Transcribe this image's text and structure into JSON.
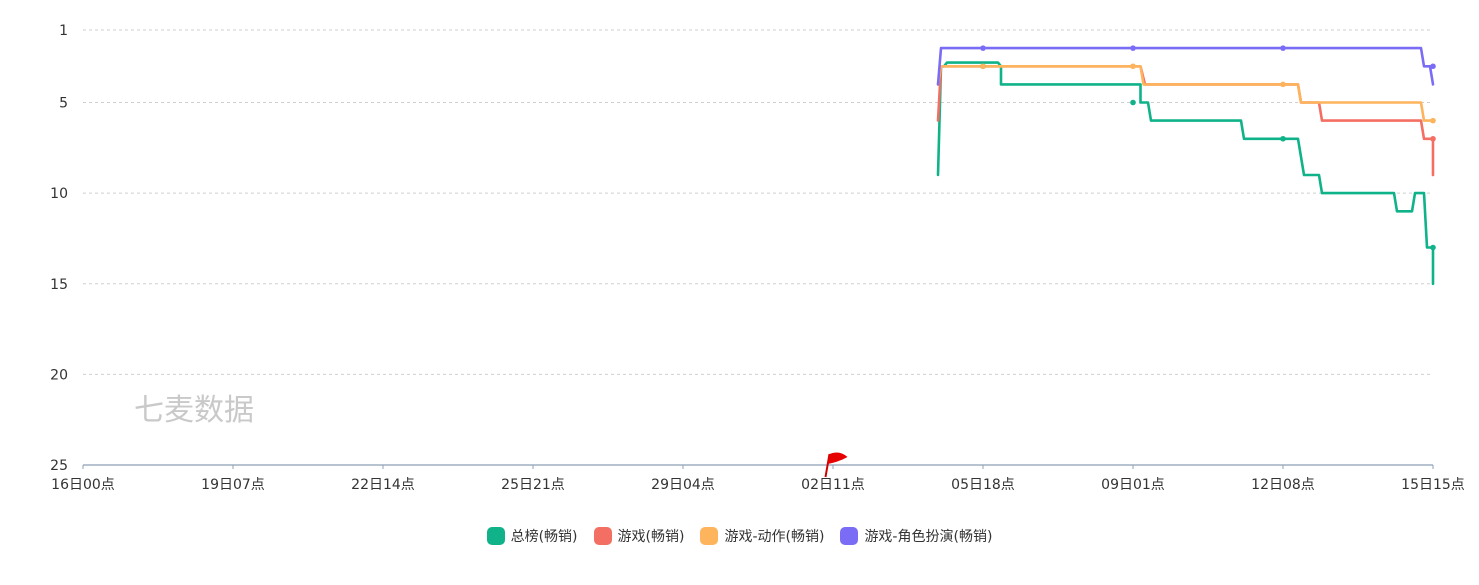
{
  "chart_data": {
    "type": "line",
    "y_inverted": true,
    "y_ticks": [
      1,
      5,
      10,
      15,
      20,
      25
    ],
    "ylim": [
      1,
      25
    ],
    "x_tick_labels": [
      "16日00点",
      "19日07点",
      "22日14点",
      "25日21点",
      "29日04点",
      "02日11点",
      "05日18点",
      "09日01点",
      "12日08点",
      "15日15点"
    ],
    "xlim": [
      0,
      9
    ],
    "grid": true,
    "legend_position": "bottom-center",
    "watermark": "七麦数据",
    "series": [
      {
        "name": "总榜(畅销)",
        "color": "#0fb289",
        "points": [
          [
            5.7,
            9
          ],
          [
            5.72,
            3
          ],
          [
            5.74,
            3
          ],
          [
            5.76,
            2.8
          ],
          [
            6.1,
            2.8
          ],
          [
            6.12,
            3
          ],
          [
            6.12,
            4
          ],
          [
            7.05,
            4
          ],
          [
            7.05,
            5
          ],
          [
            7.1,
            5
          ],
          [
            7.12,
            6
          ],
          [
            7.72,
            6
          ],
          [
            7.74,
            7
          ],
          [
            8.0,
            7
          ],
          [
            8.1,
            7
          ],
          [
            8.12,
            8
          ],
          [
            8.14,
            9
          ],
          [
            8.24,
            9
          ],
          [
            8.26,
            10
          ],
          [
            8.74,
            10
          ],
          [
            8.76,
            11
          ],
          [
            8.86,
            11
          ],
          [
            8.88,
            10
          ],
          [
            8.94,
            10
          ],
          [
            8.96,
            13
          ],
          [
            9.0,
            13
          ],
          [
            9.0,
            15
          ]
        ]
      },
      {
        "name": "游戏(畅销)",
        "color": "#f36e63",
        "points": [
          [
            5.7,
            6
          ],
          [
            5.72,
            3
          ],
          [
            6.1,
            3
          ],
          [
            7.05,
            3
          ],
          [
            7.08,
            4
          ],
          [
            8.0,
            4
          ],
          [
            8.1,
            4
          ],
          [
            8.12,
            5
          ],
          [
            8.24,
            5
          ],
          [
            8.26,
            6
          ],
          [
            8.92,
            6
          ],
          [
            8.94,
            7
          ],
          [
            9.0,
            7
          ],
          [
            9.0,
            9
          ]
        ]
      },
      {
        "name": "游戏-动作(畅销)",
        "color": "#fdb45c",
        "points": [
          [
            5.7,
            4
          ],
          [
            5.72,
            3
          ],
          [
            6.0,
            3
          ],
          [
            7.05,
            3
          ],
          [
            7.07,
            4
          ],
          [
            8.0,
            4
          ],
          [
            8.1,
            4
          ],
          [
            8.12,
            5
          ],
          [
            8.92,
            5
          ],
          [
            8.94,
            6
          ],
          [
            9.0,
            6
          ]
        ]
      },
      {
        "name": "游戏-角色扮演(畅销)",
        "color": "#7b6cf6",
        "points": [
          [
            5.7,
            4
          ],
          [
            5.72,
            2
          ],
          [
            6.0,
            2
          ],
          [
            7.0,
            2
          ],
          [
            8.0,
            2
          ],
          [
            8.92,
            2
          ],
          [
            8.94,
            3
          ],
          [
            8.98,
            3
          ],
          [
            9.0,
            4
          ]
        ]
      }
    ],
    "markers": [
      {
        "series": 0,
        "points": [
          [
            6.0,
            3
          ],
          [
            7.0,
            5
          ],
          [
            8.0,
            7
          ],
          [
            9.0,
            13
          ]
        ]
      },
      {
        "series": 1,
        "points": [
          [
            9.0,
            7
          ]
        ]
      },
      {
        "series": 2,
        "points": [
          [
            6.0,
            3
          ],
          [
            7.0,
            3
          ],
          [
            8.0,
            4
          ],
          [
            9.0,
            6
          ]
        ]
      },
      {
        "series": 3,
        "points": [
          [
            6.0,
            2
          ],
          [
            7.0,
            2
          ],
          [
            8.0,
            2
          ],
          [
            9.0,
            3
          ]
        ]
      }
    ],
    "event_flag_x": 4.95
  },
  "legend": [
    {
      "label": "总榜(畅销)",
      "color": "#0fb289"
    },
    {
      "label": "游戏(畅销)",
      "color": "#f36e63"
    },
    {
      "label": "游戏-动作(畅销)",
      "color": "#fdb45c"
    },
    {
      "label": "游戏-角色扮演(畅销)",
      "color": "#7b6cf6"
    }
  ]
}
